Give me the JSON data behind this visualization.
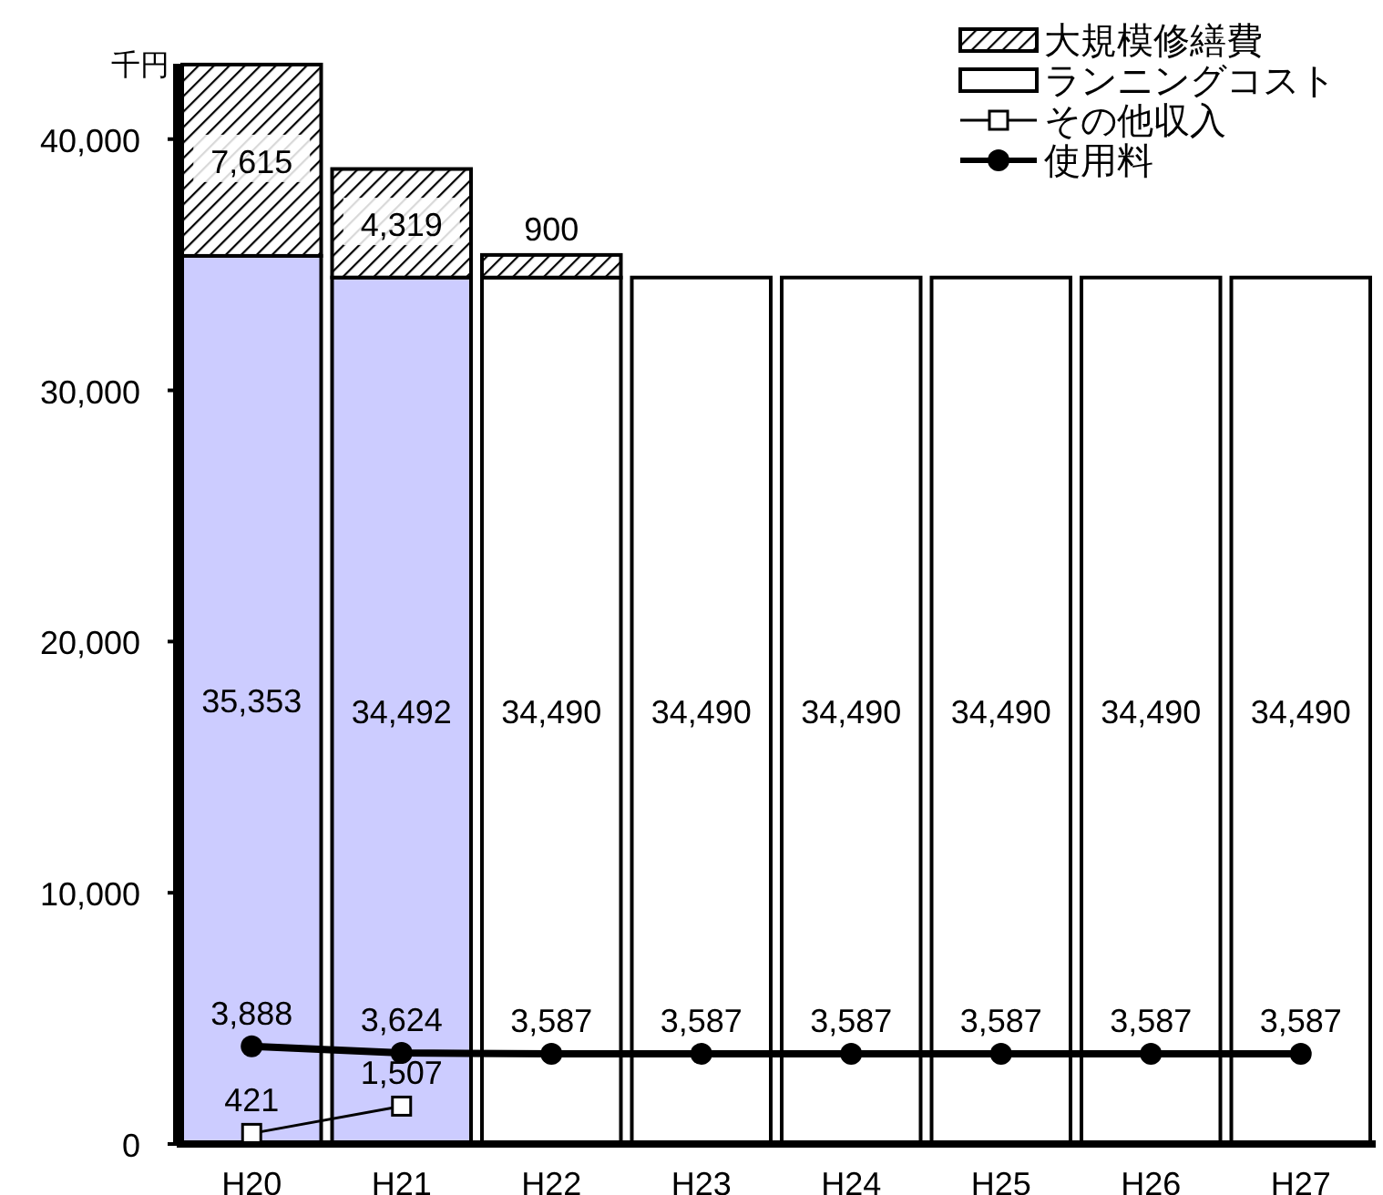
{
  "chart_data": {
    "type": "bar",
    "stacked": true,
    "ylabel": "千円",
    "categories": [
      "H20",
      "H21",
      "H22",
      "H23",
      "H24",
      "H25",
      "H26",
      "H27"
    ],
    "series": [
      {
        "name": "ランニングコスト",
        "colors": [
          "#ccccff",
          "#ccccff",
          "#ffffff",
          "#ffffff",
          "#ffffff",
          "#ffffff",
          "#ffffff",
          "#ffffff"
        ],
        "values": [
          35353,
          34492,
          34490,
          34490,
          34490,
          34490,
          34490,
          34490
        ],
        "value_labels": [
          "35,353",
          "34,492",
          "34,490",
          "34,490",
          "34,490",
          "34,490",
          "34,490",
          "34,490"
        ]
      },
      {
        "name": "大規模修繕費",
        "color": "#000000",
        "values": [
          7615,
          4319,
          900,
          null,
          null,
          null,
          null,
          null
        ],
        "value_labels": [
          "7,615",
          "4,319",
          "900",
          null,
          null,
          null,
          null,
          null
        ]
      },
      {
        "name": "その他収入",
        "type": "line",
        "color": "#000000",
        "marker": "square",
        "values": [
          421,
          1507,
          null,
          null,
          null,
          null,
          null,
          null
        ],
        "value_labels": [
          "421",
          "1,507",
          null,
          null,
          null,
          null,
          null,
          null
        ]
      },
      {
        "name": "使用料",
        "type": "line",
        "color": "#000000",
        "marker": "circle",
        "values": [
          3888,
          3624,
          3587,
          3587,
          3587,
          3587,
          3587,
          3587
        ],
        "value_labels": [
          "3,888",
          "3,624",
          "3,587",
          "3,587",
          "3,587",
          "3,587",
          "3,587",
          "3,587"
        ]
      }
    ],
    "ylim": [
      0,
      43000
    ],
    "yticks": [
      {
        "value": 0,
        "label": "0"
      },
      {
        "value": 10000,
        "label": "10,000"
      },
      {
        "value": 20000,
        "label": "20,000"
      },
      {
        "value": 30000,
        "label": "30,000"
      },
      {
        "value": 40000,
        "label": "40,000"
      }
    ],
    "legend": "top right"
  }
}
